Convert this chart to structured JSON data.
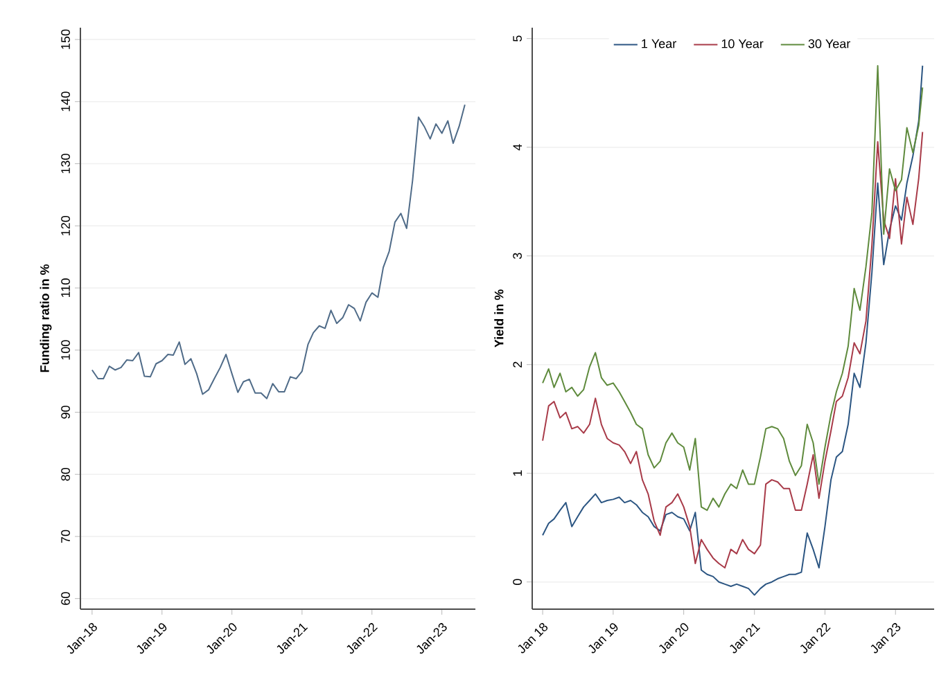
{
  "chart_data": [
    {
      "type": "line",
      "ylabel": "Funding ratio in %",
      "color": "#4f6b88",
      "grid": "y",
      "legend": false,
      "x": [
        "2018-01",
        "2018-02",
        "2018-03",
        "2018-04",
        "2018-05",
        "2018-06",
        "2018-07",
        "2018-08",
        "2018-09",
        "2018-10",
        "2018-11",
        "2018-12",
        "2019-01",
        "2019-02",
        "2019-03",
        "2019-04",
        "2019-05",
        "2019-06",
        "2019-07",
        "2019-08",
        "2019-09",
        "2019-10",
        "2019-11",
        "2019-12",
        "2020-01",
        "2020-02",
        "2020-03",
        "2020-04",
        "2020-05",
        "2020-06",
        "2020-07",
        "2020-08",
        "2020-09",
        "2020-10",
        "2020-11",
        "2020-12",
        "2021-01",
        "2021-02",
        "2021-03",
        "2021-04",
        "2021-05",
        "2021-06",
        "2021-07",
        "2021-08",
        "2021-09",
        "2021-10",
        "2021-11",
        "2021-12",
        "2022-01",
        "2022-02",
        "2022-03",
        "2022-04",
        "2022-05",
        "2022-06",
        "2022-07",
        "2022-08",
        "2022-09",
        "2022-10",
        "2022-11",
        "2022-12",
        "2023-01",
        "2023-02",
        "2023-03",
        "2023-04",
        "2023-05"
      ],
      "values": [
        96.8,
        95.4,
        95.4,
        97.4,
        96.8,
        97.2,
        98.4,
        98.3,
        99.6,
        95.8,
        95.7,
        97.8,
        98.3,
        99.3,
        99.2,
        101.3,
        97.7,
        98.6,
        96.2,
        92.9,
        93.6,
        95.4,
        97.2,
        99.3,
        96.2,
        93.2,
        94.9,
        95.3,
        93.1,
        93.1,
        92.2,
        94.6,
        93.3,
        93.3,
        95.7,
        95.4,
        96.6,
        100.9,
        102.8,
        103.9,
        103.5,
        106.4,
        104.3,
        105.2,
        107.3,
        106.7,
        104.7,
        107.7,
        109.2,
        108.5,
        113.3,
        115.9,
        120.6,
        122.0,
        119.6,
        127.3,
        137.5,
        136.0,
        134.0,
        136.4,
        134.9,
        136.9,
        133.3,
        136.0,
        139.5
      ],
      "xlim": [
        "2017-11-01",
        "2023-06-25"
      ],
      "ylim": [
        58.3,
        151.9
      ],
      "xticks": [
        {
          "value": "2018-01",
          "label": "Jan-18"
        },
        {
          "value": "2019-01",
          "label": "Jan-19"
        },
        {
          "value": "2020-01",
          "label": "Jan-20"
        },
        {
          "value": "2021-01",
          "label": "Jan-21"
        },
        {
          "value": "2022-01",
          "label": "Jan-22"
        },
        {
          "value": "2023-01",
          "label": "Jan-23"
        }
      ],
      "yticks": [
        60,
        70,
        80,
        90,
        100,
        110,
        120,
        130,
        140,
        150
      ]
    },
    {
      "type": "line",
      "ylabel": "Yield in %",
      "grid": "y",
      "legend": "top",
      "x": [
        "2018-01",
        "2018-02",
        "2018-03",
        "2018-04",
        "2018-05",
        "2018-06",
        "2018-07",
        "2018-08",
        "2018-09",
        "2018-10",
        "2018-11",
        "2018-12",
        "2019-01",
        "2019-02",
        "2019-03",
        "2019-04",
        "2019-05",
        "2019-06",
        "2019-07",
        "2019-08",
        "2019-09",
        "2019-10",
        "2019-11",
        "2019-12",
        "2020-01",
        "2020-02",
        "2020-03",
        "2020-04",
        "2020-05",
        "2020-06",
        "2020-07",
        "2020-08",
        "2020-09",
        "2020-10",
        "2020-11",
        "2020-12",
        "2021-01",
        "2021-02",
        "2021-03",
        "2021-04",
        "2021-05",
        "2021-06",
        "2021-07",
        "2021-08",
        "2021-09",
        "2021-10",
        "2021-11",
        "2021-12",
        "2022-01",
        "2022-02",
        "2022-03",
        "2022-04",
        "2022-05",
        "2022-06",
        "2022-07",
        "2022-08",
        "2022-09",
        "2022-10",
        "2022-11",
        "2022-12",
        "2023-01",
        "2023-02",
        "2023-03",
        "2023-04",
        "2023-05",
        "2023-05-21"
      ],
      "series": [
        {
          "name": "1 Year",
          "color": "#2b5582",
          "values": [
            0.43,
            0.54,
            0.58,
            0.66,
            0.73,
            0.51,
            0.6,
            0.69,
            0.75,
            0.81,
            0.73,
            0.75,
            0.76,
            0.78,
            0.73,
            0.75,
            0.71,
            0.64,
            0.6,
            0.51,
            0.47,
            0.62,
            0.64,
            0.6,
            0.58,
            0.47,
            0.64,
            0.11,
            0.07,
            0.05,
            0.0,
            -0.02,
            -0.04,
            -0.02,
            -0.04,
            -0.06,
            -0.12,
            -0.06,
            -0.02,
            0.0,
            0.03,
            0.05,
            0.07,
            0.07,
            0.09,
            0.45,
            0.3,
            0.13,
            0.51,
            0.94,
            1.15,
            1.2,
            1.45,
            1.92,
            1.79,
            2.2,
            2.85,
            3.67,
            2.92,
            3.24,
            3.46,
            3.33,
            3.67,
            3.92,
            4.24,
            4.75
          ]
        },
        {
          "name": "10 Year",
          "color": "#a83a48",
          "values": [
            1.3,
            1.62,
            1.66,
            1.51,
            1.56,
            1.41,
            1.43,
            1.37,
            1.45,
            1.69,
            1.45,
            1.32,
            1.28,
            1.26,
            1.2,
            1.09,
            1.2,
            0.94,
            0.81,
            0.56,
            0.43,
            0.69,
            0.73,
            0.81,
            0.69,
            0.51,
            0.17,
            0.39,
            0.3,
            0.22,
            0.17,
            0.13,
            0.3,
            0.26,
            0.39,
            0.3,
            0.26,
            0.34,
            0.9,
            0.94,
            0.92,
            0.86,
            0.86,
            0.66,
            0.66,
            0.9,
            1.17,
            0.77,
            1.11,
            1.39,
            1.66,
            1.71,
            1.88,
            2.2,
            2.1,
            2.4,
            3.1,
            4.05,
            3.33,
            3.16,
            3.71,
            3.11,
            3.54,
            3.29,
            3.71,
            4.14
          ]
        },
        {
          "name": "30 Year",
          "color": "#5e8a3c",
          "values": [
            1.83,
            1.96,
            1.79,
            1.92,
            1.75,
            1.79,
            1.71,
            1.77,
            1.98,
            2.11,
            1.88,
            1.81,
            1.83,
            1.75,
            1.66,
            1.56,
            1.45,
            1.41,
            1.17,
            1.05,
            1.11,
            1.28,
            1.37,
            1.28,
            1.24,
            1.03,
            1.32,
            0.69,
            0.66,
            0.77,
            0.69,
            0.81,
            0.9,
            0.86,
            1.03,
            0.9,
            0.9,
            1.15,
            1.41,
            1.43,
            1.41,
            1.32,
            1.11,
            0.98,
            1.07,
            1.45,
            1.28,
            0.9,
            1.24,
            1.54,
            1.75,
            1.92,
            2.17,
            2.7,
            2.5,
            2.9,
            3.4,
            4.75,
            3.2,
            3.8,
            3.6,
            3.7,
            4.18,
            3.95,
            4.2,
            4.55
          ]
        }
      ],
      "xlim": [
        "2017-11-08",
        "2023-07-20"
      ],
      "ylim": [
        -0.25,
        5.1
      ],
      "xticks": [
        {
          "value": "2018-01",
          "label": "Jan 18"
        },
        {
          "value": "2019-01",
          "label": "Jan 19"
        },
        {
          "value": "2020-01",
          "label": "Jan 20"
        },
        {
          "value": "2021-01",
          "label": "Jan 21"
        },
        {
          "value": "2022-01",
          "label": "Jan 22"
        },
        {
          "value": "2023-01",
          "label": "Jan 23"
        }
      ],
      "yticks": [
        0,
        1,
        2,
        3,
        4,
        5
      ]
    }
  ]
}
